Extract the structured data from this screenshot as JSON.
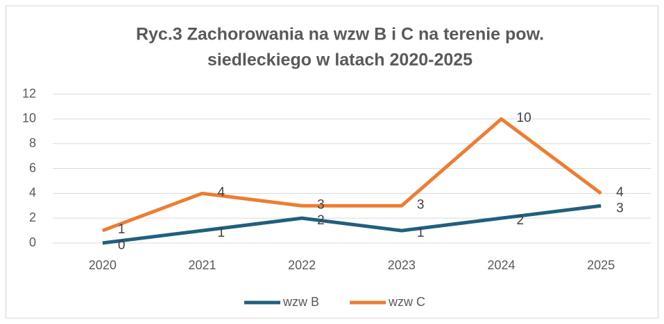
{
  "chart_data": {
    "type": "line",
    "title": [
      "Ryc.3  Zachorowania na wzw B i C na terenie pow.",
      "siedleckiego w latach 2020-2025"
    ],
    "categories": [
      "2020",
      "2021",
      "2022",
      "2023",
      "2024",
      "2025"
    ],
    "series": [
      {
        "name": "wzw B",
        "color": "#215f7d",
        "values": [
          0,
          1,
          2,
          1,
          2,
          3
        ]
      },
      {
        "name": "wzw C",
        "color": "#ed7d31",
        "values": [
          1,
          4,
          3,
          3,
          10,
          4
        ]
      }
    ],
    "ylim": [
      0,
      12
    ],
    "yticks": [
      0,
      2,
      4,
      6,
      8,
      10,
      12
    ],
    "grid": true,
    "legend": "bottom"
  }
}
